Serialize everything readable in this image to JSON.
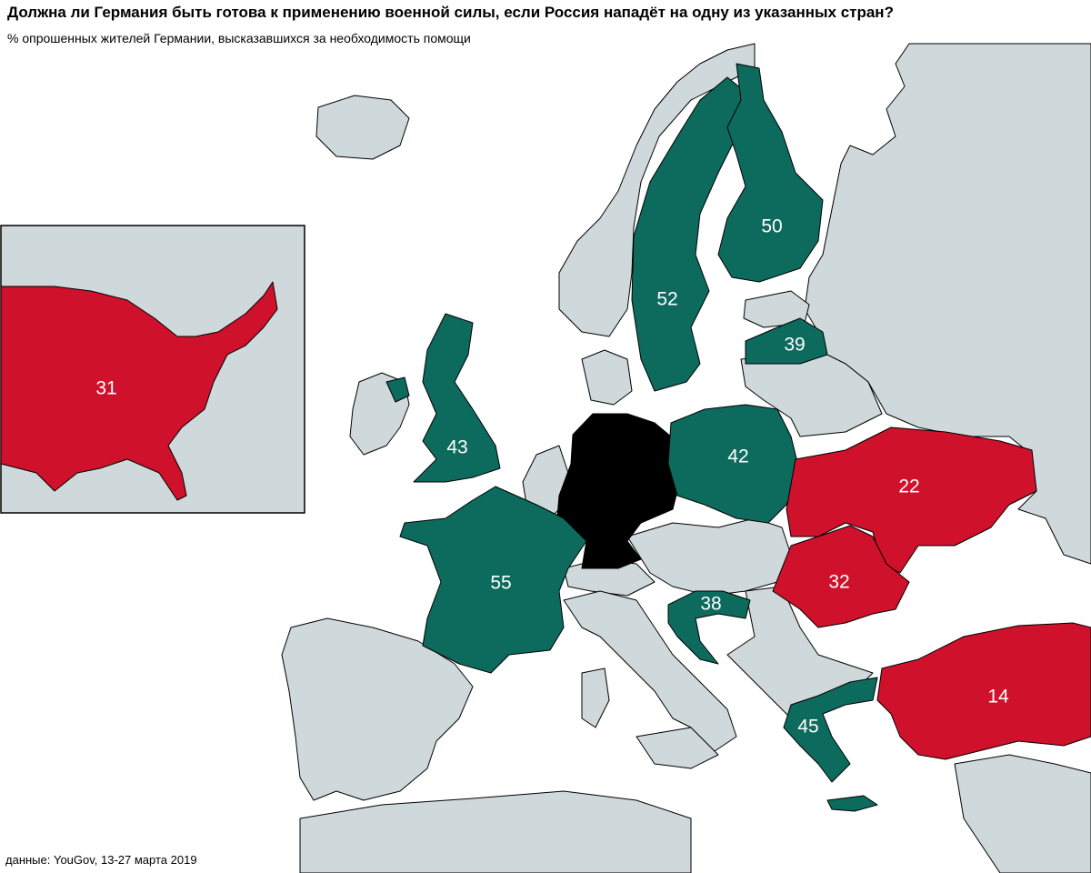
{
  "title": "Должна ли Германия быть готова к применению военной силы, если Россия нападёт на одну из указанных стран?",
  "subtitle": "% опрошенных жителей Германии, высказавшихся за необходимость помощи",
  "source": "данные: YouGov, 13-27 марта 2019",
  "colors": {
    "nato": "#0d6b5e",
    "non_nato": "#d0112b",
    "germany": "#000000",
    "other_land": "#cfd9db",
    "sea": "#ffffff"
  },
  "countries": [
    {
      "id": "usa",
      "name": "США",
      "value": "31",
      "group": "non_nato"
    },
    {
      "id": "france",
      "name": "Франция",
      "value": "55",
      "group": "nato"
    },
    {
      "id": "sweden",
      "name": "Швеция",
      "value": "52",
      "group": "nato"
    },
    {
      "id": "finland",
      "name": "Финляндия",
      "value": "50",
      "group": "nato"
    },
    {
      "id": "greece",
      "name": "Греция",
      "value": "45",
      "group": "nato"
    },
    {
      "id": "uk",
      "name": "Великобритания",
      "value": "43",
      "group": "nato"
    },
    {
      "id": "poland",
      "name": "Польша",
      "value": "42",
      "group": "nato"
    },
    {
      "id": "latvia",
      "name": "Латвия",
      "value": "39",
      "group": "nato"
    },
    {
      "id": "croatia",
      "name": "Хорватия",
      "value": "38",
      "group": "nato"
    },
    {
      "id": "romania",
      "name": "Румыния",
      "value": "32",
      "group": "non_nato"
    },
    {
      "id": "ukraine",
      "name": "Украина",
      "value": "22",
      "group": "non_nato"
    },
    {
      "id": "turkey",
      "name": "Турция",
      "value": "14",
      "group": "non_nato"
    },
    {
      "id": "germany",
      "name": "Германия",
      "value": "",
      "group": "germany"
    }
  ]
}
